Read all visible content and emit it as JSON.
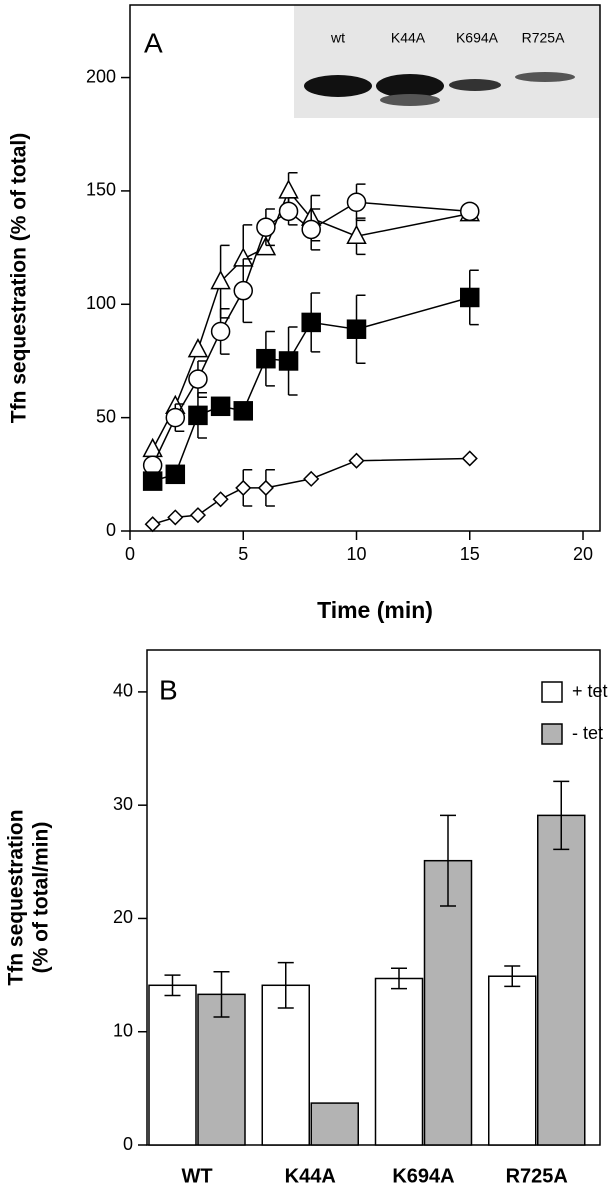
{
  "chart_data": [
    {
      "type": "scatter",
      "panel_label": "A",
      "xlabel": "Time (min)",
      "ylabel": "Tfn sequestration (% of total)",
      "xlim": [
        0,
        20.75
      ],
      "xticks": [
        0,
        5,
        10,
        15,
        20
      ],
      "ylim": [
        0,
        232
      ],
      "yticks": [
        0,
        50,
        100,
        150,
        200
      ],
      "inset_labels": [
        "wt",
        "K44A",
        "K694A",
        "R725A"
      ],
      "series": [
        {
          "marker": "triangle",
          "color": "#ffffff",
          "x": [
            1,
            2,
            3,
            4,
            5,
            6,
            7,
            8,
            10,
            15
          ],
          "values": [
            36,
            55,
            80,
            110,
            120,
            125,
            150,
            138,
            130,
            140
          ],
          "errors": [
            null,
            null,
            null,
            16,
            15,
            null,
            8,
            10,
            8,
            null
          ]
        },
        {
          "marker": "circle",
          "color": "#ffffff",
          "x": [
            1,
            2,
            3,
            4,
            5,
            6,
            7,
            8,
            10,
            15
          ],
          "values": [
            29,
            50,
            67,
            88,
            106,
            134,
            141,
            133,
            145,
            141
          ],
          "errors": [
            null,
            6,
            8,
            10,
            14,
            8,
            6,
            9,
            8,
            null
          ]
        },
        {
          "marker": "square",
          "color": "#000000",
          "x": [
            1,
            2,
            3,
            4,
            5,
            6,
            7,
            8,
            10,
            15
          ],
          "values": [
            22,
            25,
            51,
            55,
            53,
            76,
            75,
            92,
            89,
            103
          ],
          "errors": [
            null,
            null,
            10,
            null,
            null,
            12,
            15,
            13,
            15,
            12
          ]
        },
        {
          "marker": "diamond",
          "color": "#ffffff",
          "x": [
            1,
            2,
            3,
            4,
            5,
            6,
            8,
            10,
            15
          ],
          "values": [
            3,
            6,
            7,
            14,
            19,
            19,
            23,
            31,
            32
          ],
          "errors": [
            null,
            null,
            null,
            null,
            8,
            8,
            null,
            null,
            null
          ]
        }
      ]
    },
    {
      "type": "bar",
      "panel_label": "B",
      "ylabel": [
        "Tfn sequestration",
        "(% of total/min)"
      ],
      "categories": [
        "WT",
        "K44A",
        "K694A",
        "R725A"
      ],
      "ylim": [
        0,
        43.7
      ],
      "yticks": [
        0,
        10,
        20,
        30,
        40
      ],
      "legend": "top-right",
      "series": [
        {
          "name": "+ tet",
          "color": "#ffffff",
          "values": [
            14.1,
            14.1,
            14.7,
            14.9
          ],
          "errors": [
            0.9,
            2.0,
            0.9,
            0.9
          ]
        },
        {
          "name": "- tet",
          "color": "#b3b3b3",
          "values": [
            13.3,
            3.7,
            25.1,
            29.1
          ],
          "errors": [
            2.0,
            null,
            4.0,
            3.0
          ]
        }
      ]
    }
  ]
}
